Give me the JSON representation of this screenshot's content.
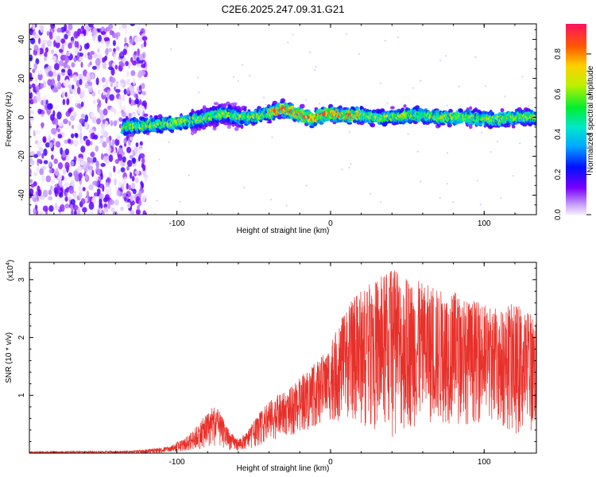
{
  "chart_data": [
    {
      "type": "heatmap",
      "title": "C2E6.2025.247.09.31.G21",
      "xlabel": "Height of straight line (km)",
      "ylabel": "Frequency (Hz)",
      "xlim": [
        -196,
        134
      ],
      "ylim": [
        -50,
        48
      ],
      "xticks": [
        -100,
        0,
        100
      ],
      "yticks": [
        -40,
        -20,
        0,
        20,
        40
      ],
      "xtick_labels": [
        "-100",
        "0",
        "100"
      ],
      "ytick_labels": [
        "-40",
        "-20",
        "0",
        "20",
        "40"
      ],
      "noise_region_x": [
        -196,
        -120
      ],
      "ridge": {
        "x": [
          -135,
          -120,
          -100,
          -85,
          -75,
          -68,
          -60,
          -50,
          -40,
          -32,
          -25,
          -18,
          -12,
          -5,
          0,
          10,
          20,
          30,
          40,
          50,
          60,
          70,
          80,
          90,
          100,
          110,
          120,
          134
        ],
        "y": [
          -5,
          -4,
          -3,
          -1,
          1,
          2,
          0,
          0,
          2,
          4,
          3,
          1,
          -1,
          1,
          2,
          1,
          1,
          0,
          0,
          1,
          1,
          0,
          0,
          0,
          -1,
          -1,
          0,
          0
        ]
      },
      "colorbar": {
        "label": "Normalized spectral amplitude",
        "range": [
          0.0,
          0.95
        ],
        "ticks": [
          0.0,
          0.2,
          0.4,
          0.6,
          0.8
        ],
        "tick_labels": [
          "0.0",
          "0.2",
          "0.4",
          "0.6",
          "0.8"
        ]
      }
    },
    {
      "type": "line",
      "xlabel": "Height of straight line (km)",
      "ylabel": "SNR (10 * v/v)",
      "yscale_label": "(x10",
      "yscale_exp": "4",
      "yscale_close": ")",
      "xlim": [
        -196,
        134
      ],
      "ylim": [
        0,
        3.3
      ],
      "xticks": [
        -100,
        0,
        100
      ],
      "yticks": [
        1,
        2,
        3
      ],
      "xtick_labels": [
        "-100",
        "0",
        "100"
      ],
      "ytick_labels": [
        "1",
        "2",
        "3"
      ],
      "series": [
        {
          "name": "SNR",
          "color": "#e8302a",
          "envelope_x": [
            -196,
            -130,
            -115,
            -105,
            -95,
            -88,
            -80,
            -75,
            -70,
            -65,
            -60,
            -55,
            -50,
            -45,
            -40,
            -35,
            -30,
            -25,
            -20,
            -15,
            -10,
            -5,
            0,
            5,
            10,
            15,
            20,
            30,
            40,
            50,
            60,
            70,
            80,
            90,
            100,
            110,
            120,
            134
          ],
          "envelope_max": [
            0.03,
            0.04,
            0.08,
            0.12,
            0.25,
            0.45,
            0.7,
            0.85,
            0.6,
            0.35,
            0.25,
            0.35,
            0.55,
            0.75,
            0.9,
            1.0,
            1.05,
            1.15,
            1.3,
            1.45,
            1.55,
            1.7,
            1.9,
            2.2,
            2.5,
            2.7,
            2.85,
            3.0,
            3.2,
            3.05,
            2.95,
            2.85,
            2.8,
            2.65,
            2.6,
            2.5,
            2.6,
            2.4
          ],
          "envelope_min": [
            0.0,
            0.0,
            0.0,
            0.01,
            0.03,
            0.06,
            0.1,
            0.12,
            0.08,
            0.05,
            0.04,
            0.06,
            0.1,
            0.15,
            0.2,
            0.25,
            0.3,
            0.3,
            0.35,
            0.4,
            0.45,
            0.5,
            0.55,
            0.55,
            0.6,
            0.55,
            0.45,
            0.4,
            0.25,
            0.4,
            0.5,
            0.5,
            0.5,
            0.5,
            0.55,
            0.5,
            0.3,
            0.4
          ]
        }
      ]
    }
  ]
}
